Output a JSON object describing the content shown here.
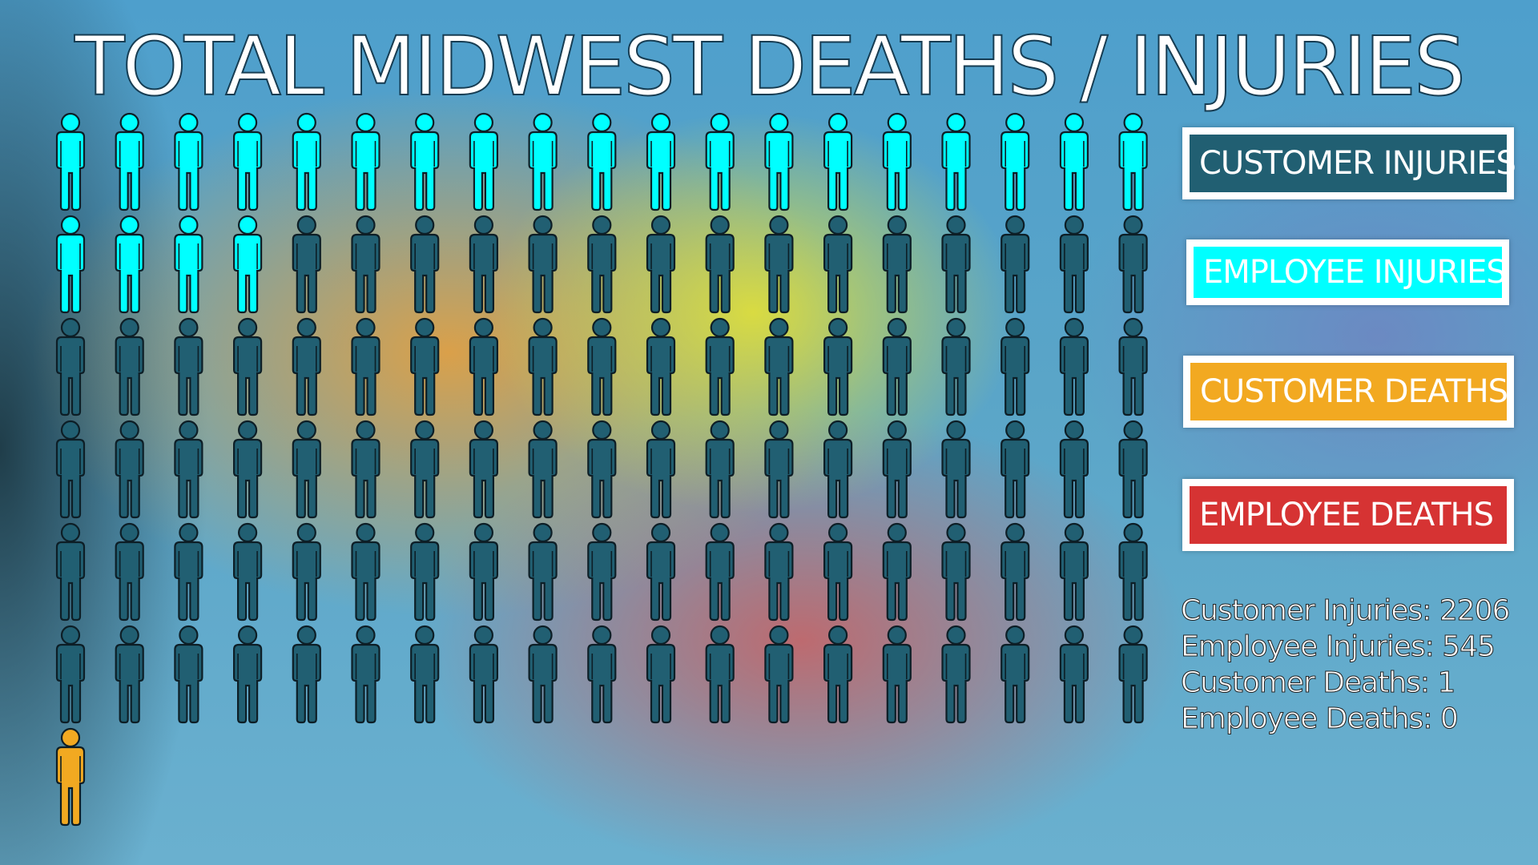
{
  "title": "TOTAL MIDWEST DEATHS / INJURIES",
  "legend": [
    {
      "label": "CUSTOMER INJURIES",
      "color": "#215f72"
    },
    {
      "label": "EMPLOYEE INJURIES",
      "color": "#00ffff"
    },
    {
      "label": "CUSTOMER DEATHS",
      "color": "#f2a921"
    },
    {
      "label": "EMPLOYEE DEATHS",
      "color": "#d63333"
    }
  ],
  "stats": [
    "Customer Injuries: 2206",
    "Employee Injuries: 545",
    "Customer Deaths: 1",
    "Employee Deaths: 0"
  ],
  "chart_data": {
    "type": "pictograph",
    "categories": [
      "Customer Injuries",
      "Employee Injuries",
      "Customer Deaths",
      "Employee Deaths"
    ],
    "values": [
      2206,
      545,
      1,
      0
    ],
    "icon": "person-icon",
    "icon_counts": {
      "employee_injuries": 23,
      "customer_injuries": 91,
      "customer_deaths": 1,
      "employee_deaths": 0
    },
    "colors": {
      "employee_injuries": "#00ffff",
      "customer_injuries": "#215f72",
      "customer_deaths": "#f2a921",
      "employee_deaths": "#d63333"
    }
  }
}
